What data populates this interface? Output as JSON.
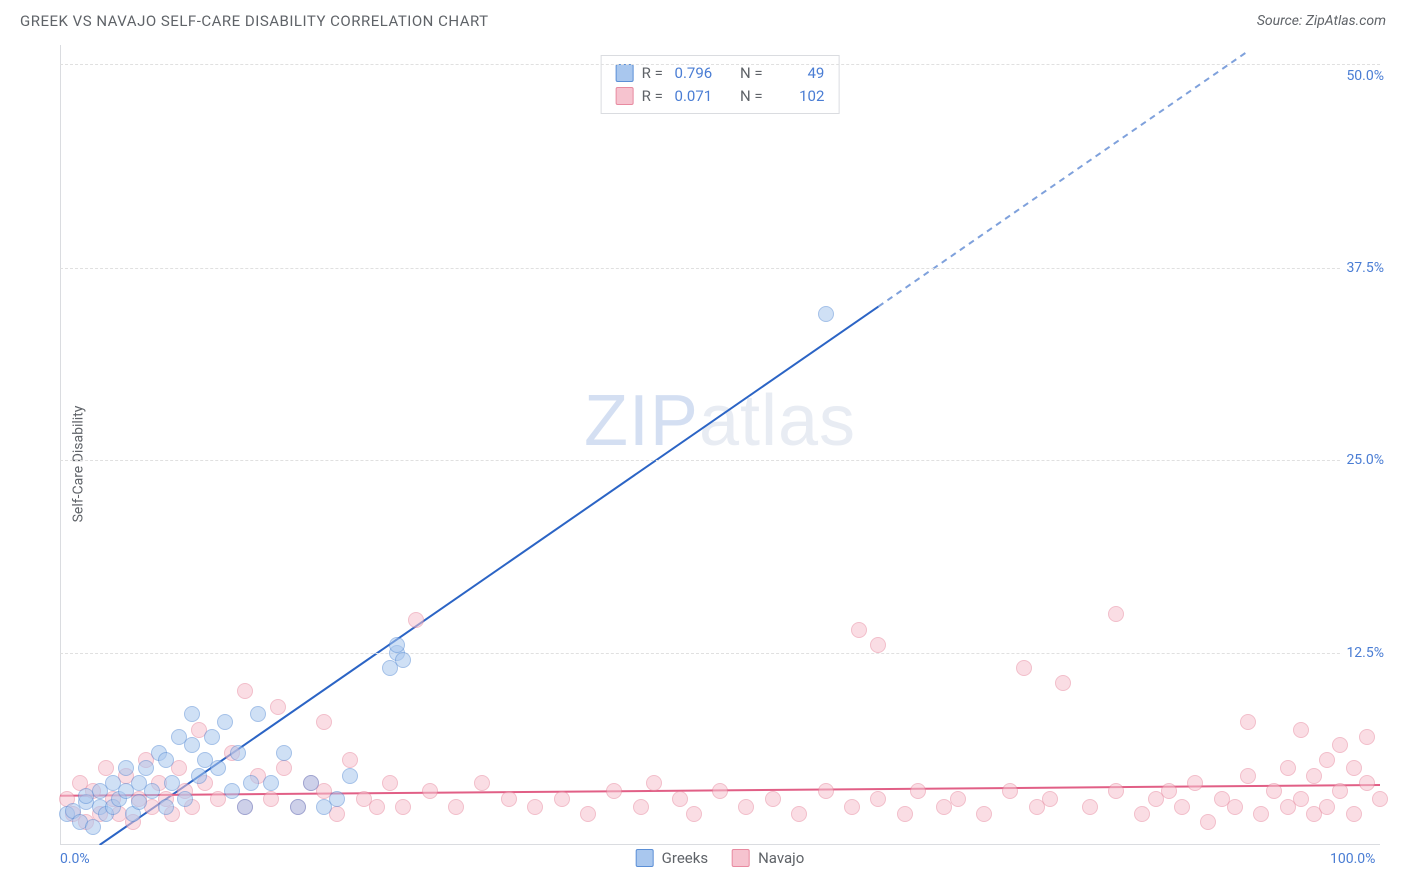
{
  "header": {
    "title": "GREEK VS NAVAJO SELF-CARE DISABILITY CORRELATION CHART",
    "source": "Source: ZipAtlas.com"
  },
  "ylabel": "Self-Care Disability",
  "watermark_html": "ZIPatlas",
  "chart": {
    "type": "scatter",
    "xlim": [
      0,
      100
    ],
    "ylim": [
      0,
      52
    ],
    "yticks": [
      12.5,
      25.0,
      37.5,
      50.0
    ],
    "ytick_labels": [
      "12.5%",
      "25.0%",
      "37.5%",
      "50.0%"
    ],
    "xticks": [
      0,
      100
    ],
    "xtick_labels": [
      "0.0%",
      "100.0%"
    ],
    "grid_y": [
      12.5,
      25.0,
      37.5,
      50.75
    ],
    "grid_color": "#e0e0e0",
    "background_color": "#ffffff",
    "axis_color": "#dadce0",
    "tick_color": "#4a7dd4",
    "label_color": "#5f6368",
    "label_fontsize": 14,
    "point_radius": 8,
    "point_opacity": 0.55,
    "series": [
      {
        "name": "Greeks",
        "fill": "#a9c7ee",
        "stroke": "#5b8fd6",
        "r_value": "0.796",
        "n_value": "49",
        "trend": {
          "x1": 3,
          "y1": 0,
          "x2": 62,
          "y2": 35,
          "dash_from_x": 62,
          "dash_to_x": 90,
          "dash_to_y": 51.6,
          "color": "#2b64c5",
          "width": 2
        },
        "points": [
          [
            0.5,
            2.0
          ],
          [
            1,
            2.2
          ],
          [
            1.5,
            1.5
          ],
          [
            2,
            2.8
          ],
          [
            2,
            3.2
          ],
          [
            2.5,
            1.2
          ],
          [
            3,
            2.5
          ],
          [
            3,
            3.5
          ],
          [
            3.5,
            2.0
          ],
          [
            4,
            4.0
          ],
          [
            4,
            2.5
          ],
          [
            4.5,
            3.0
          ],
          [
            5,
            3.5
          ],
          [
            5,
            5.0
          ],
          [
            5.5,
            2.0
          ],
          [
            6,
            4.0
          ],
          [
            6,
            2.8
          ],
          [
            6.5,
            5.0
          ],
          [
            7,
            3.5
          ],
          [
            7.5,
            6.0
          ],
          [
            8,
            2.5
          ],
          [
            8,
            5.5
          ],
          [
            8.5,
            4.0
          ],
          [
            9,
            7.0
          ],
          [
            9.5,
            3.0
          ],
          [
            10,
            6.5
          ],
          [
            10,
            8.5
          ],
          [
            10.5,
            4.5
          ],
          [
            11,
            5.5
          ],
          [
            11.5,
            7.0
          ],
          [
            12,
            5.0
          ],
          [
            12.5,
            8.0
          ],
          [
            13,
            3.5
          ],
          [
            13.5,
            6.0
          ],
          [
            14,
            2.5
          ],
          [
            14.5,
            4.0
          ],
          [
            15,
            8.5
          ],
          [
            16,
            4.0
          ],
          [
            17,
            6.0
          ],
          [
            18,
            2.5
          ],
          [
            19,
            4.0
          ],
          [
            20,
            2.5
          ],
          [
            21,
            3.0
          ],
          [
            22,
            4.5
          ],
          [
            25,
            11.5
          ],
          [
            25.5,
            12.5
          ],
          [
            25.5,
            13.0
          ],
          [
            26,
            12.0
          ],
          [
            58,
            34.5
          ]
        ]
      },
      {
        "name": "Navajo",
        "fill": "#f6c3cf",
        "stroke": "#e88aa0",
        "r_value": "0.071",
        "n_value": "102",
        "trend": {
          "x1": 0,
          "y1": 3.2,
          "x2": 100,
          "y2": 3.9,
          "color": "#e15f86",
          "width": 2
        },
        "points": [
          [
            0.5,
            3.0
          ],
          [
            1,
            2.0
          ],
          [
            1.5,
            4.0
          ],
          [
            2,
            1.5
          ],
          [
            2.5,
            3.5
          ],
          [
            3,
            2.0
          ],
          [
            3.5,
            5.0
          ],
          [
            4,
            3.0
          ],
          [
            4.5,
            2.0
          ],
          [
            5,
            4.5
          ],
          [
            5.5,
            1.5
          ],
          [
            6,
            3.0
          ],
          [
            6.5,
            5.5
          ],
          [
            7,
            2.5
          ],
          [
            7.5,
            4.0
          ],
          [
            8,
            3.0
          ],
          [
            8.5,
            2.0
          ],
          [
            9,
            5.0
          ],
          [
            9.5,
            3.5
          ],
          [
            10,
            2.5
          ],
          [
            10.5,
            7.5
          ],
          [
            11,
            4.0
          ],
          [
            12,
            3.0
          ],
          [
            13,
            6.0
          ],
          [
            14,
            2.5
          ],
          [
            14,
            10.0
          ],
          [
            15,
            4.5
          ],
          [
            16,
            3.0
          ],
          [
            16.5,
            9.0
          ],
          [
            17,
            5.0
          ],
          [
            18,
            2.5
          ],
          [
            19,
            4.0
          ],
          [
            20,
            3.5
          ],
          [
            20,
            8.0
          ],
          [
            21,
            2.0
          ],
          [
            22,
            5.5
          ],
          [
            23,
            3.0
          ],
          [
            24,
            2.5
          ],
          [
            25,
            4.0
          ],
          [
            26,
            2.5
          ],
          [
            27,
            14.6
          ],
          [
            28,
            3.5
          ],
          [
            30,
            2.5
          ],
          [
            32,
            4.0
          ],
          [
            34,
            3.0
          ],
          [
            36,
            2.5
          ],
          [
            38,
            3.0
          ],
          [
            40,
            2.0
          ],
          [
            42,
            3.5
          ],
          [
            44,
            2.5
          ],
          [
            45,
            4.0
          ],
          [
            47,
            3.0
          ],
          [
            48,
            2.0
          ],
          [
            50,
            3.5
          ],
          [
            52,
            2.5
          ],
          [
            54,
            3.0
          ],
          [
            56,
            2.0
          ],
          [
            58,
            3.5
          ],
          [
            60,
            2.5
          ],
          [
            60.5,
            14.0
          ],
          [
            62,
            13.0
          ],
          [
            62,
            3.0
          ],
          [
            64,
            2.0
          ],
          [
            65,
            3.5
          ],
          [
            67,
            2.5
          ],
          [
            68,
            3.0
          ],
          [
            70,
            2.0
          ],
          [
            72,
            3.5
          ],
          [
            73,
            11.5
          ],
          [
            74,
            2.5
          ],
          [
            75,
            3.0
          ],
          [
            76,
            10.5
          ],
          [
            78,
            2.5
          ],
          [
            80,
            3.5
          ],
          [
            80,
            15.0
          ],
          [
            82,
            2.0
          ],
          [
            83,
            3.0
          ],
          [
            84,
            3.5
          ],
          [
            85,
            2.5
          ],
          [
            86,
            4.0
          ],
          [
            87,
            1.5
          ],
          [
            88,
            3.0
          ],
          [
            89,
            2.5
          ],
          [
            90,
            4.5
          ],
          [
            90,
            8.0
          ],
          [
            91,
            2.0
          ],
          [
            92,
            3.5
          ],
          [
            93,
            5.0
          ],
          [
            93,
            2.5
          ],
          [
            94,
            7.5
          ],
          [
            94,
            3.0
          ],
          [
            95,
            2.0
          ],
          [
            95,
            4.5
          ],
          [
            96,
            5.5
          ],
          [
            96,
            2.5
          ],
          [
            97,
            6.5
          ],
          [
            97,
            3.5
          ],
          [
            98,
            5.0
          ],
          [
            98,
            2.0
          ],
          [
            99,
            4.0
          ],
          [
            99,
            7.0
          ],
          [
            100,
            3.0
          ]
        ]
      }
    ]
  },
  "xlegend": {
    "items": [
      {
        "label": "Greeks",
        "fill": "#a9c7ee",
        "stroke": "#5b8fd6"
      },
      {
        "label": "Navajo",
        "fill": "#f6c3cf",
        "stroke": "#e88aa0"
      }
    ]
  }
}
